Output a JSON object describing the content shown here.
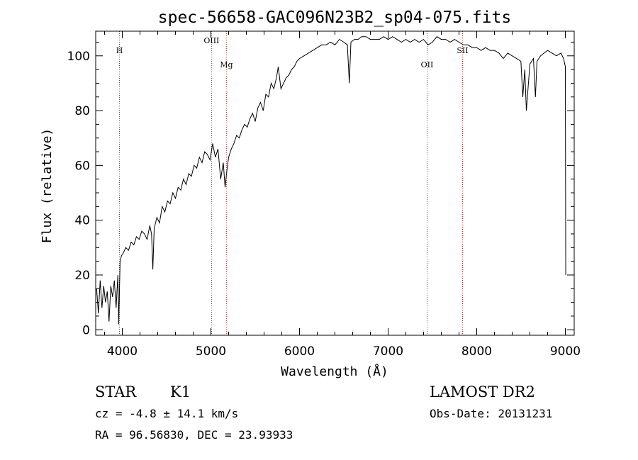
{
  "chart_data": {
    "type": "line",
    "title": "spec-56658-GAC096N23B2_sp04-075.fits",
    "xlabel": "Wavelength (Å)",
    "ylabel": "Flux (relative)",
    "xlim": [
      3700,
      9100
    ],
    "ylim": [
      -2,
      109
    ],
    "xticks": [
      4000,
      5000,
      6000,
      7000,
      8000,
      9000
    ],
    "xtick_labels": [
      "4000",
      "5000",
      "6000",
      "7000",
      "8000",
      "9000"
    ],
    "yticks": [
      0,
      20,
      40,
      60,
      80,
      100
    ],
    "ytick_labels": [
      "0",
      "20",
      "40",
      "60",
      "80",
      "100"
    ],
    "spectral_lines": [
      {
        "name": "H",
        "x": 3968
      },
      {
        "name": "OIII",
        "x": 5007
      },
      {
        "name": "Mg",
        "x": 5175
      },
      {
        "name": "OII",
        "x": 7440
      },
      {
        "name": "SII",
        "x": 7840
      }
    ],
    "line_color": "#000000",
    "marker_line_color": "#a03030",
    "series": [
      {
        "x": [
          3710,
          3730,
          3750,
          3770,
          3790,
          3810,
          3830,
          3850,
          3870,
          3890,
          3910,
          3930,
          3950,
          3960,
          3975,
          3990,
          4010,
          4040,
          4070,
          4100,
          4130,
          4160,
          4190,
          4220,
          4250,
          4280,
          4310,
          4330,
          4345,
          4360,
          4390,
          4420,
          4450,
          4480,
          4510,
          4540,
          4570,
          4600,
          4630,
          4660,
          4690,
          4720,
          4750,
          4780,
          4810,
          4840,
          4870,
          4900,
          4930,
          4960,
          4990,
          5020,
          5050,
          5080,
          5110,
          5140,
          5160,
          5180,
          5200,
          5230,
          5260,
          5290,
          5320,
          5350,
          5380,
          5410,
          5440,
          5470,
          5500,
          5530,
          5560,
          5590,
          5620,
          5650,
          5680,
          5710,
          5740,
          5760,
          5790,
          5820,
          5850,
          5880,
          5910,
          5940,
          5970,
          6000,
          6050,
          6100,
          6150,
          6200,
          6250,
          6300,
          6350,
          6400,
          6450,
          6500,
          6540,
          6562,
          6580,
          6620,
          6660,
          6700,
          6750,
          6800,
          6850,
          6900,
          6950,
          7000,
          7050,
          7100,
          7150,
          7200,
          7250,
          7300,
          7350,
          7400,
          7450,
          7500,
          7550,
          7600,
          7650,
          7700,
          7750,
          7800,
          7850,
          7900,
          7950,
          8000,
          8050,
          8100,
          8150,
          8200,
          8250,
          8300,
          8350,
          8400,
          8450,
          8498,
          8520,
          8542,
          8560,
          8600,
          8640,
          8662,
          8680,
          8720,
          8760,
          8800,
          8850,
          8900,
          8950,
          8980,
          9000,
          9005
        ],
        "values": [
          15,
          6,
          18,
          8,
          16,
          10,
          14,
          3,
          16,
          12,
          18,
          8,
          20,
          2,
          25,
          27,
          28,
          30,
          29,
          32,
          31,
          34,
          33,
          36,
          35,
          33,
          38,
          35,
          22,
          37,
          41,
          39,
          45,
          43,
          47,
          46,
          50,
          48,
          52,
          51,
          55,
          53,
          57,
          56,
          60,
          59,
          63,
          61,
          65,
          64,
          62,
          68,
          63,
          66,
          55,
          61,
          52,
          58,
          63,
          66,
          68,
          71,
          70,
          73,
          75,
          74,
          77,
          79,
          76,
          81,
          83,
          80,
          86,
          85,
          90,
          88,
          92,
          96,
          88,
          90,
          92,
          93,
          95,
          96,
          98,
          99,
          100,
          101,
          102,
          103,
          104,
          104,
          105,
          104,
          106,
          105,
          104,
          90,
          105,
          106,
          106,
          107,
          107,
          106,
          106,
          106,
          107,
          106,
          107,
          106,
          105,
          106,
          105,
          106,
          105,
          106,
          104,
          105,
          107,
          106,
          106,
          105,
          106,
          105,
          104,
          104,
          103,
          103,
          102,
          103,
          102,
          102,
          101,
          99,
          101,
          100,
          99,
          98,
          85,
          95,
          80,
          97,
          99,
          85,
          98,
          100,
          101,
          102,
          101,
          100,
          101,
          99,
          96,
          20
        ]
      }
    ]
  },
  "info": {
    "object_class": "STAR",
    "subclass": "K1",
    "survey": "LAMOST DR2",
    "cz": "cz = -4.8 ± 14.1 km/s",
    "obs_date": "Obs-Date: 20131231",
    "radec": "RA =  96.56830, DEC =  23.93933"
  }
}
